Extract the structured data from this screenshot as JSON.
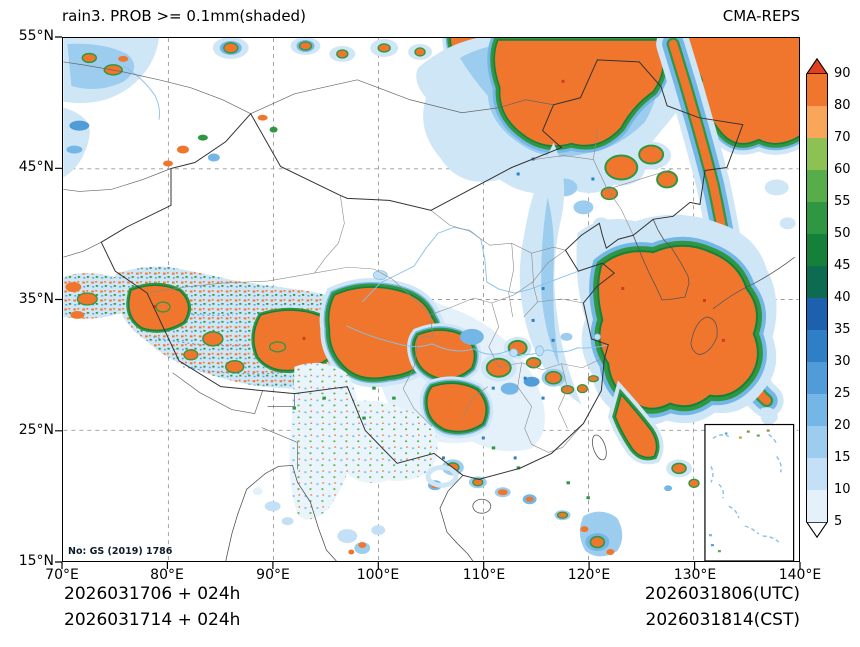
{
  "header": {
    "title": "rain3. PROB >= 0.1mm(shaded)",
    "source": "CMA-REPS"
  },
  "axes": {
    "x_ticks": [
      "70°E",
      "80°E",
      "90°E",
      "100°E",
      "110°E",
      "120°E",
      "130°E",
      "140°E"
    ],
    "y_ticks": [
      "55°N",
      "45°N",
      "35°N",
      "25°N",
      "15°N"
    ]
  },
  "annotation": {
    "license": "No: GS (2019) 1786"
  },
  "colorbar": {
    "tick_labels_top_to_bottom": [
      "90",
      "80",
      "70",
      "60",
      "55",
      "50",
      "45",
      "40",
      "35",
      "30",
      "25",
      "20",
      "15",
      "10",
      "5"
    ],
    "colors_top_to_bottom": [
      "#e3401e",
      "#f1762d",
      "#f9a65a",
      "#8dc153",
      "#57ad49",
      "#2f9741",
      "#15803a",
      "#0c6b50",
      "#1d61ae",
      "#2f7fc6",
      "#4f9cd9",
      "#74b6e6",
      "#9ccdef",
      "#c3e0f6",
      "#e4f1fb",
      "#ffffff"
    ]
  },
  "footer": {
    "init_line_utc": "2026031706 + 024h",
    "init_line_cst": "2026031714 + 024h",
    "valid_line_utc": "2026031806(UTC)",
    "valid_line_cst": "2026031814(CST)"
  },
  "chart_data": {
    "type": "heatmap",
    "title": "rain3. PROB >= 0.1mm(shaded)",
    "model": "CMA-REPS",
    "lon_range_deg_east": [
      70,
      140
    ],
    "lat_range_deg_north": [
      15,
      55
    ],
    "probability_levels_percent": [
      5,
      10,
      15,
      20,
      25,
      30,
      35,
      40,
      45,
      50,
      55,
      60,
      70,
      80,
      90
    ],
    "legend_position": "right",
    "grid": "on"
  }
}
